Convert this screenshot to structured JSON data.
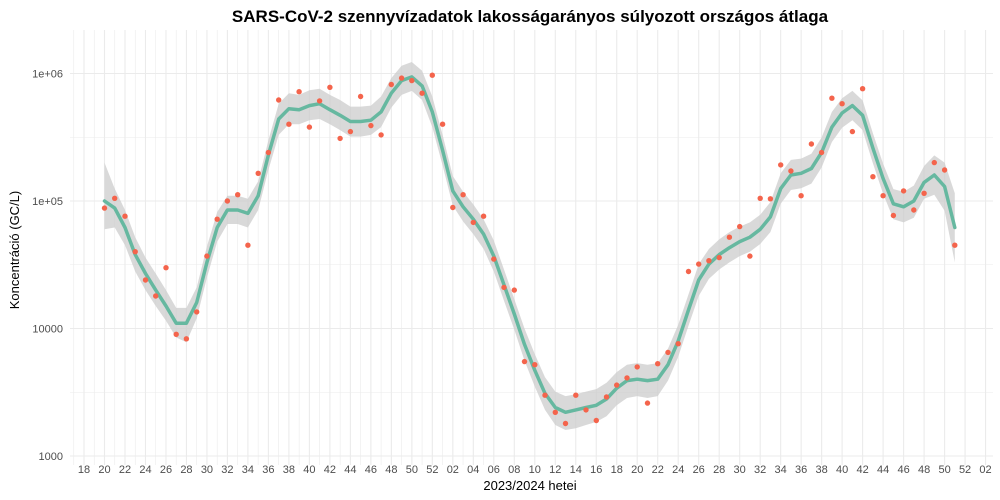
{
  "chart_data": {
    "type": "scatter",
    "title": "SARS-CoV-2 szennyvízadatok lakosságarányos súlyozott országos átlaga",
    "xlabel": "2023/2024 hetei",
    "ylabel": "Koncentráció (GC/L)",
    "y_scale": "log10",
    "ylim": [
      1000,
      2000000
    ],
    "y_ticks": [
      {
        "value": 1000,
        "label": "1000"
      },
      {
        "value": 10000,
        "label": "10000"
      },
      {
        "value": 100000,
        "label": "1e+05"
      },
      {
        "value": 1000000,
        "label": "1e+06"
      }
    ],
    "x_tick_labels": [
      "18",
      "20",
      "22",
      "24",
      "26",
      "28",
      "30",
      "32",
      "34",
      "36",
      "38",
      "40",
      "42",
      "44",
      "46",
      "48",
      "50",
      "52",
      "02",
      "04",
      "06",
      "08",
      "10",
      "12",
      "14",
      "16",
      "18",
      "20",
      "22",
      "24",
      "26",
      "28",
      "30",
      "32",
      "34",
      "36",
      "38",
      "40",
      "42",
      "44",
      "46",
      "48",
      "50",
      "52",
      "02"
    ],
    "grid": true,
    "colors": {
      "points": "#f4644c",
      "smooth": "#66b8a0",
      "band": "#cccccc",
      "panel": "#ffffff",
      "grid": "#ebebeb"
    },
    "series": [
      {
        "type": "points",
        "x": [
          "2023-20",
          "2023-21",
          "2023-22",
          "2023-23",
          "2023-24",
          "2023-25",
          "2023-26",
          "2023-27",
          "2023-28",
          "2023-29",
          "2023-30",
          "2023-31",
          "2023-32",
          "2023-33",
          "2023-34",
          "2023-35",
          "2023-36",
          "2023-37",
          "2023-38",
          "2023-39",
          "2023-40",
          "2023-41",
          "2023-42",
          "2023-43",
          "2023-44",
          "2023-45",
          "2023-46",
          "2023-47",
          "2023-48",
          "2023-49",
          "2023-50",
          "2023-51",
          "2023-52",
          "2024-01",
          "2024-02",
          "2024-03",
          "2024-04",
          "2024-05",
          "2024-06",
          "2024-07",
          "2024-08",
          "2024-09",
          "2024-10",
          "2024-11",
          "2024-12",
          "2024-13",
          "2024-14",
          "2024-15",
          "2024-16",
          "2024-17",
          "2024-18",
          "2024-19",
          "2024-20",
          "2024-21",
          "2024-22",
          "2024-23",
          "2024-24",
          "2024-25",
          "2024-26",
          "2024-27",
          "2024-28",
          "2024-29",
          "2024-30",
          "2024-31",
          "2024-32",
          "2024-33",
          "2024-34",
          "2024-35",
          "2024-36",
          "2024-37",
          "2024-38",
          "2024-39",
          "2024-40",
          "2024-41",
          "2024-42",
          "2024-43",
          "2024-44",
          "2024-45",
          "2024-46",
          "2024-47",
          "2024-48",
          "2024-49",
          "2024-50",
          "2024-51"
        ],
        "values": [
          88000,
          105000,
          76000,
          40000,
          24000,
          18000,
          30000,
          9000,
          8300,
          13500,
          37000,
          72000,
          100000,
          112000,
          45000,
          165000,
          240000,
          620000,
          400000,
          720000,
          380000,
          610000,
          780000,
          310000,
          350000,
          660000,
          390000,
          330000,
          820000,
          920000,
          880000,
          700000,
          970000,
          400000,
          89000,
          112000,
          68000,
          76000,
          35000,
          21000,
          20000,
          5500,
          5200,
          3000,
          2200,
          1800,
          3000,
          2300,
          1900,
          2900,
          3600,
          4100,
          5000,
          2600,
          5300,
          6500,
          7600,
          28000,
          32000,
          34000,
          36000,
          52000,
          63000,
          37000,
          105000,
          104000,
          192000,
          172000,
          110000,
          280000,
          240000,
          640000,
          580000,
          350000,
          760000,
          155000,
          110000,
          77000,
          120000,
          85000,
          115000,
          200000,
          175000,
          45000
        ]
      },
      {
        "type": "smooth",
        "x": [
          "2023-20",
          "2023-21",
          "2023-22",
          "2023-23",
          "2023-24",
          "2023-25",
          "2023-26",
          "2023-27",
          "2023-28",
          "2023-29",
          "2023-30",
          "2023-31",
          "2023-32",
          "2023-33",
          "2023-34",
          "2023-35",
          "2023-36",
          "2023-37",
          "2023-38",
          "2023-39",
          "2023-40",
          "2023-41",
          "2023-42",
          "2023-43",
          "2023-44",
          "2023-45",
          "2023-46",
          "2023-47",
          "2023-48",
          "2023-49",
          "2023-50",
          "2023-51",
          "2023-52",
          "2024-01",
          "2024-02",
          "2024-03",
          "2024-04",
          "2024-05",
          "2024-06",
          "2024-07",
          "2024-08",
          "2024-09",
          "2024-10",
          "2024-11",
          "2024-12",
          "2024-13",
          "2024-14",
          "2024-15",
          "2024-16",
          "2024-17",
          "2024-18",
          "2024-19",
          "2024-20",
          "2024-21",
          "2024-22",
          "2024-23",
          "2024-24",
          "2024-25",
          "2024-26",
          "2024-27",
          "2024-28",
          "2024-29",
          "2024-30",
          "2024-31",
          "2024-32",
          "2024-33",
          "2024-34",
          "2024-35",
          "2024-36",
          "2024-37",
          "2024-38",
          "2024-39",
          "2024-40",
          "2024-41",
          "2024-42",
          "2024-43",
          "2024-44",
          "2024-45",
          "2024-46",
          "2024-47",
          "2024-48",
          "2024-49",
          "2024-50",
          "2024-51"
        ],
        "values": [
          100000,
          88000,
          62000,
          38000,
          27000,
          20000,
          15000,
          11000,
          11000,
          16000,
          33000,
          62000,
          85000,
          85000,
          80000,
          110000,
          230000,
          440000,
          530000,
          520000,
          560000,
          580000,
          520000,
          470000,
          420000,
          420000,
          430000,
          500000,
          700000,
          880000,
          940000,
          800000,
          500000,
          250000,
          120000,
          90000,
          72000,
          55000,
          37000,
          22000,
          13000,
          7500,
          4700,
          3100,
          2400,
          2200,
          2300,
          2400,
          2500,
          2800,
          3400,
          3900,
          4000,
          3900,
          4000,
          5200,
          8000,
          14000,
          24000,
          32000,
          38000,
          43000,
          48000,
          52000,
          60000,
          75000,
          125000,
          160000,
          165000,
          180000,
          240000,
          380000,
          490000,
          560000,
          470000,
          260000,
          150000,
          95000,
          90000,
          100000,
          140000,
          160000,
          130000,
          62000
        ],
        "band_low": [
          60000,
          62000,
          45000,
          28000,
          20000,
          15000,
          11500,
          8500,
          7800,
          12000,
          25000,
          48000,
          66000,
          66000,
          62000,
          85000,
          175000,
          330000,
          400000,
          400000,
          430000,
          440000,
          400000,
          360000,
          320000,
          320000,
          330000,
          380000,
          540000,
          680000,
          730000,
          620000,
          380000,
          190000,
          92000,
          69000,
          55000,
          42000,
          28000,
          16500,
          9800,
          5600,
          3500,
          2300,
          1750,
          1600,
          1650,
          1750,
          1850,
          2050,
          2500,
          2850,
          2950,
          2850,
          2950,
          3900,
          6000,
          10500,
          18000,
          24500,
          29000,
          33000,
          37000,
          40000,
          46000,
          57000,
          95000,
          122000,
          126000,
          137000,
          183000,
          290000,
          375000,
          430000,
          360000,
          198000,
          114000,
          72000,
          68000,
          74000,
          104000,
          112000,
          84000,
          33000
        ],
        "band_high": [
          200000,
          125000,
          85000,
          52000,
          36000,
          27000,
          20000,
          14500,
          14500,
          21000,
          44000,
          82000,
          110000,
          110000,
          104000,
          143000,
          300000,
          580000,
          700000,
          680000,
          740000,
          760000,
          680000,
          620000,
          550000,
          550000,
          560000,
          660000,
          920000,
          1150000,
          1230000,
          1050000,
          660000,
          330000,
          157000,
          118000,
          94000,
          72000,
          49000,
          29000,
          17000,
          10000,
          6300,
          4150,
          3200,
          2950,
          3050,
          3200,
          3350,
          3750,
          4550,
          5200,
          5350,
          5200,
          5350,
          6950,
          10700,
          18500,
          32000,
          42000,
          50000,
          57000,
          63000,
          68000,
          78000,
          98000,
          165000,
          210000,
          215000,
          235000,
          315000,
          500000,
          640000,
          730000,
          615000,
          340000,
          196000,
          124000,
          118000,
          132000,
          188000,
          228000,
          200000,
          115000
        ]
      }
    ]
  }
}
